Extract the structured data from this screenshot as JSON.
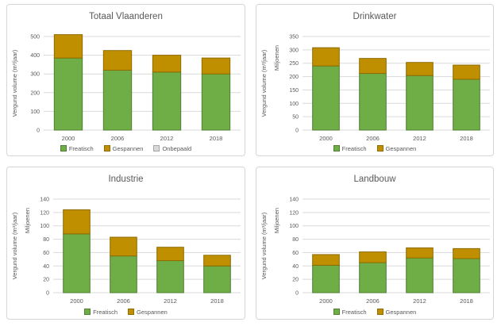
{
  "page": {
    "background": "#ffffff"
  },
  "colors": {
    "text": "#595959",
    "grid": "#d9d9d9",
    "panel_border": "#d6d6d6",
    "freatisch": {
      "fill": "#6fad47",
      "stroke": "#507e32"
    },
    "gespannen": {
      "fill": "#bf8f00",
      "stroke": "#8f6b00"
    },
    "onbepaald": {
      "fill": "#d9d9d9",
      "stroke": "#a6a6a6"
    }
  },
  "chart_data": [
    {
      "id": "totaal-vlaanderen",
      "type": "bar",
      "stacked": true,
      "title": "Totaal Vlaanderen",
      "ylabel": "Vergund volume (m³/jaar)",
      "unit_label": null,
      "xlabel": "",
      "categories": [
        "2000",
        "2006",
        "2012",
        "2018"
      ],
      "series": [
        {
          "name": "Freatisch",
          "color_key": "freatisch",
          "values": [
            385,
            320,
            310,
            300
          ]
        },
        {
          "name": "Gespannen",
          "color_key": "gespannen",
          "values": [
            125,
            105,
            90,
            85
          ]
        },
        {
          "name": "Onbepaald",
          "color_key": "onbepaald",
          "values": [
            0,
            0,
            0,
            0
          ]
        }
      ],
      "ylim": [
        0,
        500
      ],
      "ytick_step": 100,
      "grid": true,
      "legend_position": "bottom"
    },
    {
      "id": "drinkwater",
      "type": "bar",
      "stacked": true,
      "title": "Drinkwater",
      "ylabel": "Vergund volume (m³/jaar)",
      "unit_label": "Miljoenen",
      "xlabel": "",
      "categories": [
        "2000",
        "2006",
        "2012",
        "2018"
      ],
      "series": [
        {
          "name": "Freatisch",
          "color_key": "freatisch",
          "values": [
            240,
            212,
            204,
            190
          ]
        },
        {
          "name": "Gespannen",
          "color_key": "gespannen",
          "values": [
            68,
            56,
            49,
            53
          ]
        }
      ],
      "ylim": [
        0,
        350
      ],
      "ytick_step": 50,
      "grid": true,
      "legend_position": "bottom"
    },
    {
      "id": "industrie",
      "type": "bar",
      "stacked": true,
      "title": "Industrie",
      "ylabel": "Vergund volume (m³/jaar)",
      "unit_label": "Miljoenen",
      "xlabel": "",
      "categories": [
        "2000",
        "2006",
        "2012",
        "2018"
      ],
      "series": [
        {
          "name": "Freatisch",
          "color_key": "freatisch",
          "values": [
            88,
            55,
            48,
            40
          ]
        },
        {
          "name": "Gespannen",
          "color_key": "gespannen",
          "values": [
            36,
            28,
            20,
            16
          ]
        }
      ],
      "ylim": [
        0,
        140
      ],
      "ytick_step": 20,
      "grid": true,
      "legend_position": "bottom"
    },
    {
      "id": "landbouw",
      "type": "bar",
      "stacked": true,
      "title": "Landbouw",
      "ylabel": "Vergund volume (m³/jaar)",
      "unit_label": "Miljoenen",
      "xlabel": "",
      "categories": [
        "2000",
        "2006",
        "2012",
        "2018"
      ],
      "series": [
        {
          "name": "Freatisch",
          "color_key": "freatisch",
          "values": [
            41,
            45,
            52,
            51
          ]
        },
        {
          "name": "Gespannen",
          "color_key": "gespannen",
          "values": [
            16,
            16,
            15,
            15
          ]
        }
      ],
      "ylim": [
        0,
        140
      ],
      "ytick_step": 20,
      "grid": true,
      "legend_position": "bottom"
    }
  ]
}
